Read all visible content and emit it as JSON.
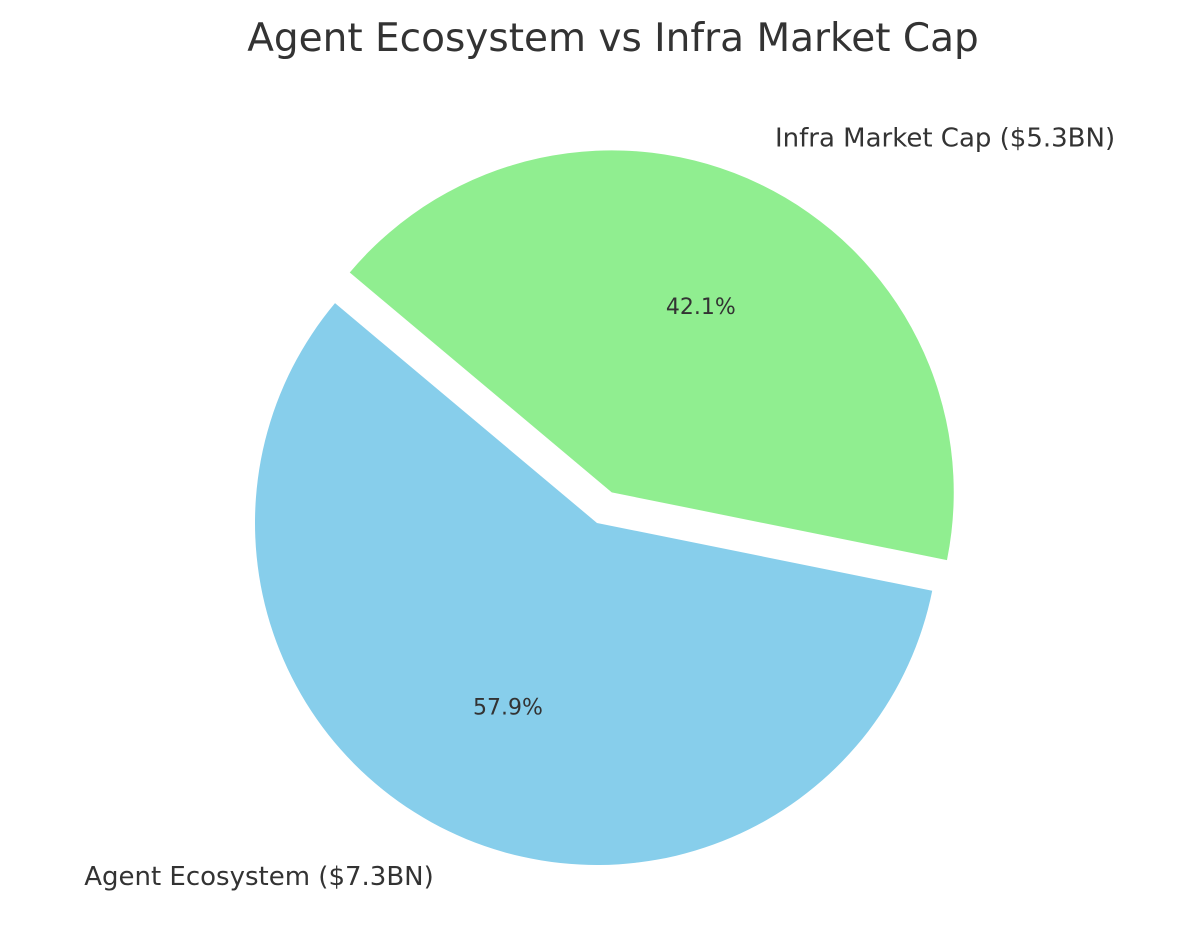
{
  "chart_data": {
    "type": "pie",
    "title": "Agent Ecosystem vs Infra Market Cap",
    "slices": [
      {
        "label": "Agent Ecosystem ($7.3BN)",
        "value": 7.3,
        "percent_label": "57.9%",
        "color": "#87CEEB",
        "exploded": false
      },
      {
        "label": "Infra Market Cap ($5.3BN)",
        "value": 5.3,
        "percent_label": "42.1%",
        "color": "#90EE90",
        "exploded": true
      }
    ],
    "start_angle_deg": 140,
    "direction": "counterclockwise",
    "legend": "none"
  }
}
